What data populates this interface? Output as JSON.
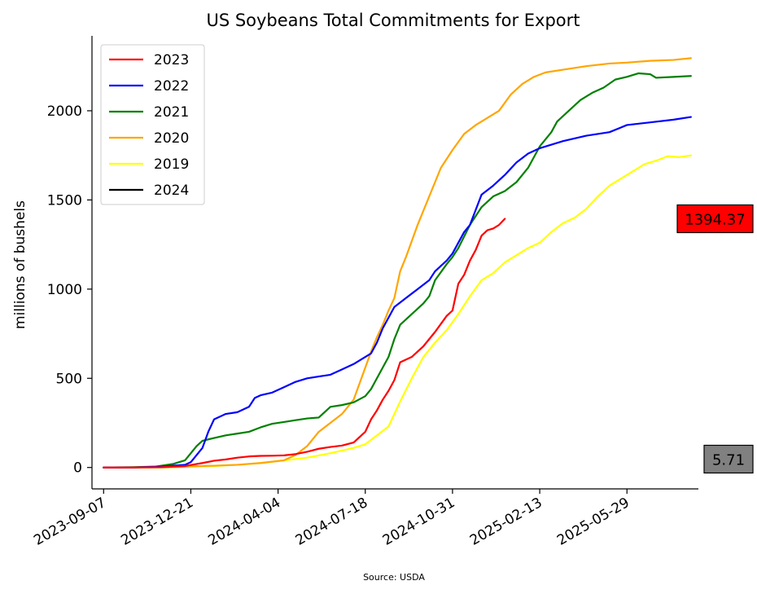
{
  "chart_data": {
    "type": "line",
    "title": "US Soybeans Total Commitments for Export",
    "xlabel": "",
    "ylabel": "millions of bushels",
    "source": "Source: USDA",
    "x_ticks": [
      "2023-09-07",
      "2023-12-21",
      "2024-04-04",
      "2024-07-18",
      "2024-10-31",
      "2025-02-13",
      "2025-05-29"
    ],
    "y_ticks": [
      0,
      500,
      1000,
      1500,
      2000
    ],
    "xlim": [
      "2023-08-24",
      "2025-08-23"
    ],
    "ylim": [
      -120,
      2420
    ],
    "grid": false,
    "legend_position": "top-left",
    "series": [
      {
        "name": "2023",
        "color": "#ff0000",
        "points": [
          [
            "2023-09-07",
            0
          ],
          [
            "2023-10-12",
            0
          ],
          [
            "2023-11-16",
            2
          ],
          [
            "2023-12-14",
            8
          ],
          [
            "2023-12-21",
            14
          ],
          [
            "2024-01-04",
            25
          ],
          [
            "2024-01-18",
            38
          ],
          [
            "2024-02-01",
            45
          ],
          [
            "2024-02-15",
            55
          ],
          [
            "2024-02-29",
            62
          ],
          [
            "2024-03-14",
            65
          ],
          [
            "2024-03-28",
            66
          ],
          [
            "2024-04-11",
            68
          ],
          [
            "2024-04-25",
            75
          ],
          [
            "2024-05-09",
            88
          ],
          [
            "2024-05-23",
            105
          ],
          [
            "2024-06-06",
            115
          ],
          [
            "2024-06-20",
            123
          ],
          [
            "2024-07-04",
            140
          ],
          [
            "2024-07-18",
            200
          ],
          [
            "2024-07-25",
            270
          ],
          [
            "2024-08-01",
            320
          ],
          [
            "2024-08-08",
            380
          ],
          [
            "2024-08-15",
            430
          ],
          [
            "2024-08-22",
            490
          ],
          [
            "2024-08-29",
            590
          ],
          [
            "2024-09-12",
            620
          ],
          [
            "2024-09-26",
            680
          ],
          [
            "2024-10-10",
            760
          ],
          [
            "2024-10-24",
            850
          ],
          [
            "2024-10-31",
            880
          ],
          [
            "2024-11-07",
            1030
          ],
          [
            "2024-11-14",
            1080
          ],
          [
            "2024-11-21",
            1160
          ],
          [
            "2024-11-28",
            1220
          ],
          [
            "2024-12-05",
            1300
          ],
          [
            "2024-12-12",
            1330
          ],
          [
            "2024-12-19",
            1340
          ],
          [
            "2024-12-26",
            1360
          ],
          [
            "2025-01-02",
            1394.37
          ]
        ]
      },
      {
        "name": "2022",
        "color": "#0000ff",
        "points": [
          [
            "2023-09-07",
            0
          ],
          [
            "2023-10-12",
            0
          ],
          [
            "2023-11-16",
            5
          ],
          [
            "2023-12-14",
            15
          ],
          [
            "2023-12-21",
            30
          ],
          [
            "2024-01-04",
            110
          ],
          [
            "2024-01-11",
            200
          ],
          [
            "2024-01-18",
            270
          ],
          [
            "2024-02-01",
            300
          ],
          [
            "2024-02-15",
            310
          ],
          [
            "2024-02-29",
            340
          ],
          [
            "2024-03-07",
            390
          ],
          [
            "2024-03-14",
            405
          ],
          [
            "2024-03-28",
            420
          ],
          [
            "2024-04-11",
            450
          ],
          [
            "2024-04-25",
            480
          ],
          [
            "2024-05-09",
            500
          ],
          [
            "2024-05-23",
            510
          ],
          [
            "2024-06-06",
            520
          ],
          [
            "2024-06-20",
            550
          ],
          [
            "2024-07-04",
            580
          ],
          [
            "2024-07-18",
            620
          ],
          [
            "2024-07-25",
            640
          ],
          [
            "2024-08-01",
            700
          ],
          [
            "2024-08-08",
            780
          ],
          [
            "2024-08-22",
            900
          ],
          [
            "2024-09-05",
            950
          ],
          [
            "2024-09-19",
            1000
          ],
          [
            "2024-10-03",
            1050
          ],
          [
            "2024-10-10",
            1100
          ],
          [
            "2024-10-24",
            1160
          ],
          [
            "2024-10-31",
            1200
          ],
          [
            "2024-11-07",
            1260
          ],
          [
            "2024-11-14",
            1320
          ],
          [
            "2024-11-21",
            1360
          ],
          [
            "2024-12-05",
            1530
          ],
          [
            "2024-12-19",
            1580
          ],
          [
            "2025-01-02",
            1640
          ],
          [
            "2025-01-16",
            1710
          ],
          [
            "2025-01-30",
            1760
          ],
          [
            "2025-02-13",
            1790
          ],
          [
            "2025-03-13",
            1830
          ],
          [
            "2025-04-10",
            1860
          ],
          [
            "2025-05-08",
            1880
          ],
          [
            "2025-05-29",
            1920
          ],
          [
            "2025-06-26",
            1935
          ],
          [
            "2025-07-24",
            1950
          ],
          [
            "2025-08-14",
            1965
          ]
        ]
      },
      {
        "name": "2021",
        "color": "#008000",
        "points": [
          [
            "2023-09-07",
            0
          ],
          [
            "2023-10-12",
            2
          ],
          [
            "2023-11-09",
            5
          ],
          [
            "2023-11-30",
            20
          ],
          [
            "2023-12-14",
            40
          ],
          [
            "2023-12-28",
            120
          ],
          [
            "2024-01-04",
            150
          ],
          [
            "2024-01-18",
            165
          ],
          [
            "2024-02-01",
            180
          ],
          [
            "2024-02-15",
            190
          ],
          [
            "2024-02-29",
            200
          ],
          [
            "2024-03-14",
            225
          ],
          [
            "2024-03-28",
            245
          ],
          [
            "2024-04-11",
            255
          ],
          [
            "2024-04-25",
            265
          ],
          [
            "2024-05-09",
            275
          ],
          [
            "2024-05-23",
            280
          ],
          [
            "2024-06-06",
            340
          ],
          [
            "2024-06-20",
            350
          ],
          [
            "2024-07-04",
            365
          ],
          [
            "2024-07-18",
            400
          ],
          [
            "2024-07-25",
            440
          ],
          [
            "2024-08-01",
            500
          ],
          [
            "2024-08-08",
            560
          ],
          [
            "2024-08-15",
            620
          ],
          [
            "2024-08-22",
            720
          ],
          [
            "2024-08-29",
            800
          ],
          [
            "2024-09-12",
            860
          ],
          [
            "2024-09-26",
            920
          ],
          [
            "2024-10-03",
            960
          ],
          [
            "2024-10-10",
            1050
          ],
          [
            "2024-10-24",
            1140
          ],
          [
            "2024-10-31",
            1180
          ],
          [
            "2024-11-07",
            1230
          ],
          [
            "2024-11-21",
            1360
          ],
          [
            "2024-12-05",
            1460
          ],
          [
            "2024-12-19",
            1520
          ],
          [
            "2025-01-02",
            1550
          ],
          [
            "2025-01-16",
            1600
          ],
          [
            "2025-01-30",
            1680
          ],
          [
            "2025-02-13",
            1800
          ],
          [
            "2025-02-27",
            1880
          ],
          [
            "2025-03-06",
            1940
          ],
          [
            "2025-03-20",
            2000
          ],
          [
            "2025-04-03",
            2060
          ],
          [
            "2025-04-17",
            2100
          ],
          [
            "2025-05-01",
            2130
          ],
          [
            "2025-05-15",
            2175
          ],
          [
            "2025-05-29",
            2190
          ],
          [
            "2025-06-12",
            2210
          ],
          [
            "2025-06-26",
            2205
          ],
          [
            "2025-07-03",
            2185
          ],
          [
            "2025-07-24",
            2190
          ],
          [
            "2025-08-14",
            2195
          ]
        ]
      },
      {
        "name": "2020",
        "color": "#ffa500",
        "points": [
          [
            "2023-09-07",
            0
          ],
          [
            "2023-11-16",
            0
          ],
          [
            "2023-12-14",
            5
          ],
          [
            "2024-01-18",
            10
          ],
          [
            "2024-02-15",
            15
          ],
          [
            "2024-03-14",
            25
          ],
          [
            "2024-04-11",
            40
          ],
          [
            "2024-04-25",
            70
          ],
          [
            "2024-05-09",
            120
          ],
          [
            "2024-05-23",
            200
          ],
          [
            "2024-06-06",
            250
          ],
          [
            "2024-06-20",
            300
          ],
          [
            "2024-07-04",
            380
          ],
          [
            "2024-07-11",
            470
          ],
          [
            "2024-07-18",
            560
          ],
          [
            "2024-07-25",
            650
          ],
          [
            "2024-08-01",
            730
          ],
          [
            "2024-08-08",
            800
          ],
          [
            "2024-08-15",
            880
          ],
          [
            "2024-08-22",
            950
          ],
          [
            "2024-08-29",
            1100
          ],
          [
            "2024-09-05",
            1180
          ],
          [
            "2024-09-12",
            1270
          ],
          [
            "2024-09-19",
            1360
          ],
          [
            "2024-09-26",
            1440
          ],
          [
            "2024-10-03",
            1520
          ],
          [
            "2024-10-10",
            1600
          ],
          [
            "2024-10-17",
            1680
          ],
          [
            "2024-10-31",
            1780
          ],
          [
            "2024-11-14",
            1870
          ],
          [
            "2024-11-28",
            1920
          ],
          [
            "2024-12-12",
            1960
          ],
          [
            "2024-12-26",
            2000
          ],
          [
            "2025-01-09",
            2090
          ],
          [
            "2025-01-23",
            2150
          ],
          [
            "2025-02-06",
            2190
          ],
          [
            "2025-02-20",
            2215
          ],
          [
            "2025-03-13",
            2230
          ],
          [
            "2025-04-10",
            2250
          ],
          [
            "2025-05-08",
            2265
          ],
          [
            "2025-05-29",
            2270
          ],
          [
            "2025-06-26",
            2280
          ],
          [
            "2025-07-24",
            2285
          ],
          [
            "2025-08-14",
            2295
          ]
        ]
      },
      {
        "name": "2019",
        "color": "#ffff00",
        "points": [
          [
            "2023-09-07",
            0
          ],
          [
            "2023-11-16",
            0
          ],
          [
            "2023-12-14",
            3
          ],
          [
            "2024-01-18",
            8
          ],
          [
            "2024-02-15",
            15
          ],
          [
            "2024-03-14",
            25
          ],
          [
            "2024-04-11",
            40
          ],
          [
            "2024-05-09",
            55
          ],
          [
            "2024-06-06",
            80
          ],
          [
            "2024-07-04",
            110
          ],
          [
            "2024-07-18",
            130
          ],
          [
            "2024-08-01",
            180
          ],
          [
            "2024-08-15",
            230
          ],
          [
            "2024-08-22",
            300
          ],
          [
            "2024-08-29",
            370
          ],
          [
            "2024-09-12",
            500
          ],
          [
            "2024-09-26",
            620
          ],
          [
            "2024-10-10",
            700
          ],
          [
            "2024-10-24",
            770
          ],
          [
            "2024-11-07",
            860
          ],
          [
            "2024-11-21",
            960
          ],
          [
            "2024-12-05",
            1050
          ],
          [
            "2024-12-19",
            1090
          ],
          [
            "2025-01-02",
            1150
          ],
          [
            "2025-01-16",
            1190
          ],
          [
            "2025-01-30",
            1230
          ],
          [
            "2025-02-13",
            1260
          ],
          [
            "2025-02-27",
            1320
          ],
          [
            "2025-03-13",
            1370
          ],
          [
            "2025-03-27",
            1400
          ],
          [
            "2025-04-10",
            1450
          ],
          [
            "2025-04-24",
            1520
          ],
          [
            "2025-05-08",
            1580
          ],
          [
            "2025-05-22",
            1620
          ],
          [
            "2025-06-05",
            1660
          ],
          [
            "2025-06-19",
            1700
          ],
          [
            "2025-07-03",
            1720
          ],
          [
            "2025-07-17",
            1745
          ],
          [
            "2025-07-31",
            1740
          ],
          [
            "2025-08-14",
            1750
          ]
        ]
      },
      {
        "name": "2024",
        "color": "#000000",
        "points": [
          [
            "2023-09-07",
            0
          ],
          [
            "2023-10-05",
            0
          ],
          [
            "2023-11-02",
            1
          ],
          [
            "2023-11-30",
            3
          ],
          [
            "2023-12-14",
            5.71
          ]
        ]
      }
    ],
    "annotations": [
      {
        "text": "1394.37",
        "value": 1394.37,
        "series": "2023",
        "box_color": "#ff0000"
      },
      {
        "text": "5.71",
        "value": 5.71,
        "series": "2024",
        "box_color": "#808080"
      }
    ]
  }
}
